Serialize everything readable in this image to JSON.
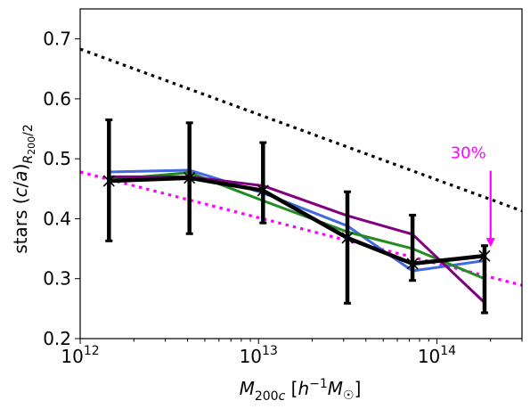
{
  "chart_data": {
    "type": "line",
    "x_scale": "log",
    "xlim": [
      1000000000000.0,
      300000000000000.0
    ],
    "ylim": [
      0.2,
      0.75
    ],
    "x_tick_values": [
      1000000000000.0,
      10000000000000.0,
      100000000000000.0
    ],
    "x_tick_labels": [
      {
        "base": "10",
        "exp": "12"
      },
      {
        "base": "10",
        "exp": "13"
      },
      {
        "base": "10",
        "exp": "14"
      }
    ],
    "y_ticks": [
      0.2,
      0.3,
      0.4,
      0.5,
      0.6,
      0.7
    ],
    "y_tick_labels": [
      "0.2",
      "0.3",
      "0.4",
      "0.5",
      "0.6",
      "0.7"
    ],
    "xlabel": "M₂₀₀c [h⁻¹M☉]",
    "ylabel": "stars (c/a)R₂₀₀/2",
    "grid": false,
    "series": [
      {
        "color": "#4169e1",
        "style": "solid",
        "x": [
          1450000000000.0,
          4100000000000.0,
          10600000000000.0,
          31500000000000.0,
          73000000000000.0,
          185000000000000.0
        ],
        "y": [
          0.478,
          0.481,
          0.443,
          0.388,
          0.313,
          0.33
        ]
      },
      {
        "color": "#228b22",
        "style": "solid",
        "x": [
          1450000000000.0,
          4100000000000.0,
          10600000000000.0,
          31500000000000.0,
          73000000000000.0,
          185000000000000.0
        ],
        "y": [
          0.465,
          0.477,
          0.43,
          0.378,
          0.35,
          0.3
        ]
      },
      {
        "color": "#800080",
        "style": "solid",
        "x": [
          1450000000000.0,
          4100000000000.0,
          10600000000000.0,
          31500000000000.0,
          73000000000000.0,
          185000000000000.0
        ],
        "y": [
          0.47,
          0.47,
          0.455,
          0.405,
          0.374,
          0.26
        ]
      },
      {
        "color": "#000000",
        "style": "solid",
        "marker": "x",
        "x": [
          1450000000000.0,
          4100000000000.0,
          10600000000000.0,
          31500000000000.0,
          73000000000000.0,
          185000000000000.0
        ],
        "y": [
          0.463,
          0.468,
          0.447,
          0.368,
          0.325,
          0.338
        ],
        "yerr_low": [
          0.363,
          0.375,
          0.393,
          0.259,
          0.297,
          0.243
        ],
        "yerr_high": [
          0.565,
          0.56,
          0.527,
          0.445,
          0.406,
          0.355
        ]
      },
      {
        "color": "#000000",
        "style": "dotted",
        "x": [
          1000000000000.0,
          300000000000000.0
        ],
        "y": [
          0.683,
          0.413
        ]
      },
      {
        "color": "#ff00ff",
        "style": "dotted",
        "x": [
          1000000000000.0,
          300000000000000.0
        ],
        "y": [
          0.478,
          0.289
        ]
      }
    ],
    "annotation": {
      "text": "30%",
      "color": "#ff00ff",
      "arrow_x": 200000000000000.0,
      "arrow_from": 0.48,
      "arrow_to": 0.353
    }
  }
}
